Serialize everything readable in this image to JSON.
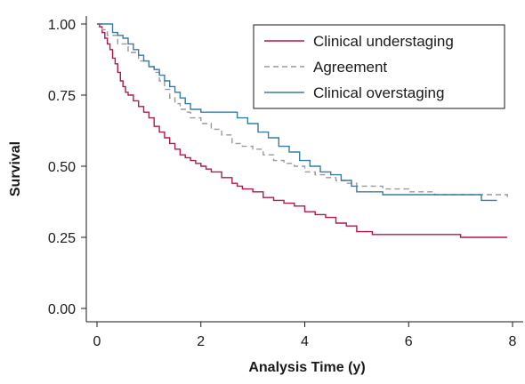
{
  "chart_data": {
    "type": "line",
    "title": "",
    "xlabel": "Analysis Time (y)",
    "ylabel": "Survival",
    "xlim": [
      0,
      8
    ],
    "ylim": [
      0,
      1
    ],
    "xticks": [
      0,
      2,
      4,
      6,
      8
    ],
    "xtick_labels": [
      "0",
      "2",
      "4",
      "6",
      "8"
    ],
    "yticks": [
      0,
      0.25,
      0.5,
      0.75,
      1.0
    ],
    "ytick_labels": [
      "0.00",
      "0.25",
      "0.50",
      "0.75",
      "1.00"
    ],
    "grid": false,
    "legend": {
      "position": "top-right",
      "entries": [
        "Clinical understaging",
        "Agreement",
        "Clinical overstaging"
      ]
    },
    "series": [
      {
        "name": "Clinical understaging",
        "color": "#b5174b",
        "dash": "solid",
        "step": true,
        "points": [
          [
            0,
            1.0
          ],
          [
            0.05,
            0.99
          ],
          [
            0.1,
            0.97
          ],
          [
            0.15,
            0.95
          ],
          [
            0.2,
            0.93
          ],
          [
            0.25,
            0.91
          ],
          [
            0.3,
            0.88
          ],
          [
            0.35,
            0.86
          ],
          [
            0.4,
            0.83
          ],
          [
            0.45,
            0.8
          ],
          [
            0.5,
            0.78
          ],
          [
            0.55,
            0.76
          ],
          [
            0.6,
            0.75
          ],
          [
            0.7,
            0.73
          ],
          [
            0.8,
            0.71
          ],
          [
            0.9,
            0.69
          ],
          [
            1.0,
            0.67
          ],
          [
            1.1,
            0.64
          ],
          [
            1.2,
            0.62
          ],
          [
            1.3,
            0.6
          ],
          [
            1.4,
            0.58
          ],
          [
            1.5,
            0.56
          ],
          [
            1.6,
            0.54
          ],
          [
            1.7,
            0.53
          ],
          [
            1.8,
            0.52
          ],
          [
            1.9,
            0.51
          ],
          [
            2.0,
            0.5
          ],
          [
            2.1,
            0.49
          ],
          [
            2.2,
            0.48
          ],
          [
            2.4,
            0.46
          ],
          [
            2.6,
            0.44
          ],
          [
            2.7,
            0.43
          ],
          [
            2.8,
            0.42
          ],
          [
            3.0,
            0.41
          ],
          [
            3.2,
            0.39
          ],
          [
            3.4,
            0.38
          ],
          [
            3.6,
            0.37
          ],
          [
            3.8,
            0.36
          ],
          [
            4.0,
            0.34
          ],
          [
            4.2,
            0.33
          ],
          [
            4.4,
            0.32
          ],
          [
            4.6,
            0.3
          ],
          [
            4.8,
            0.29
          ],
          [
            5.0,
            0.27
          ],
          [
            5.3,
            0.26
          ],
          [
            6.0,
            0.26
          ],
          [
            6.8,
            0.26
          ],
          [
            7.0,
            0.25
          ],
          [
            7.9,
            0.25
          ]
        ]
      },
      {
        "name": "Agreement",
        "color": "#9a9a9a",
        "dash": "dashed",
        "step": true,
        "points": [
          [
            0,
            1.0
          ],
          [
            0.1,
            0.98
          ],
          [
            0.2,
            0.96
          ],
          [
            0.4,
            0.93
          ],
          [
            0.6,
            0.9
          ],
          [
            0.8,
            0.87
          ],
          [
            1.0,
            0.85
          ],
          [
            1.1,
            0.83
          ],
          [
            1.2,
            0.8
          ],
          [
            1.3,
            0.77
          ],
          [
            1.4,
            0.74
          ],
          [
            1.5,
            0.72
          ],
          [
            1.6,
            0.7
          ],
          [
            1.7,
            0.69
          ],
          [
            1.8,
            0.67
          ],
          [
            2.0,
            0.65
          ],
          [
            2.2,
            0.63
          ],
          [
            2.4,
            0.61
          ],
          [
            2.6,
            0.58
          ],
          [
            2.8,
            0.57
          ],
          [
            3.0,
            0.56
          ],
          [
            3.2,
            0.54
          ],
          [
            3.4,
            0.52
          ],
          [
            3.6,
            0.51
          ],
          [
            3.8,
            0.5
          ],
          [
            4.0,
            0.48
          ],
          [
            4.2,
            0.47
          ],
          [
            4.4,
            0.46
          ],
          [
            4.6,
            0.45
          ],
          [
            4.8,
            0.44
          ],
          [
            5.0,
            0.43
          ],
          [
            5.5,
            0.42
          ],
          [
            6.0,
            0.41
          ],
          [
            6.5,
            0.4
          ],
          [
            7.0,
            0.4
          ],
          [
            7.5,
            0.4
          ],
          [
            7.9,
            0.39
          ]
        ]
      },
      {
        "name": "Clinical overstaging",
        "color": "#3a7ba0",
        "dash": "solid",
        "step": true,
        "points": [
          [
            0,
            1.0
          ],
          [
            0.2,
            1.0
          ],
          [
            0.3,
            0.97
          ],
          [
            0.4,
            0.96
          ],
          [
            0.5,
            0.95
          ],
          [
            0.6,
            0.93
          ],
          [
            0.7,
            0.91
          ],
          [
            0.8,
            0.89
          ],
          [
            0.9,
            0.87
          ],
          [
            1.0,
            0.85
          ],
          [
            1.1,
            0.84
          ],
          [
            1.2,
            0.82
          ],
          [
            1.3,
            0.8
          ],
          [
            1.4,
            0.78
          ],
          [
            1.5,
            0.76
          ],
          [
            1.6,
            0.74
          ],
          [
            1.7,
            0.72
          ],
          [
            1.8,
            0.7
          ],
          [
            2.0,
            0.69
          ],
          [
            2.6,
            0.69
          ],
          [
            2.7,
            0.67
          ],
          [
            2.9,
            0.65
          ],
          [
            3.1,
            0.62
          ],
          [
            3.3,
            0.6
          ],
          [
            3.5,
            0.57
          ],
          [
            3.7,
            0.55
          ],
          [
            3.9,
            0.52
          ],
          [
            4.1,
            0.5
          ],
          [
            4.3,
            0.48
          ],
          [
            4.5,
            0.47
          ],
          [
            4.7,
            0.45
          ],
          [
            4.9,
            0.43
          ],
          [
            5.0,
            0.41
          ],
          [
            5.5,
            0.4
          ],
          [
            6.0,
            0.4
          ],
          [
            7.0,
            0.4
          ],
          [
            7.4,
            0.38
          ],
          [
            7.7,
            0.38
          ]
        ]
      }
    ]
  }
}
